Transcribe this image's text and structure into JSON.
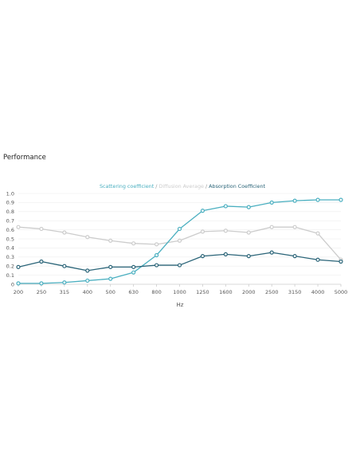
{
  "heading": "Performance",
  "colors": {
    "scattering": "#4aafc0",
    "diffusion": "#cccccc",
    "absorption": "#2a6478",
    "separator": "#999999",
    "grid": "#eeeeee",
    "axis": "#cccccc"
  },
  "chart_data": {
    "type": "line",
    "title": "",
    "legend": {
      "position": "top-center",
      "separator": " / "
    },
    "xlabel": "Hz",
    "ylabel": "",
    "categories": [
      "200",
      "250",
      "315",
      "400",
      "500",
      "630",
      "800",
      "1000",
      "1250",
      "1600",
      "2000",
      "2500",
      "3150",
      "4000",
      "5000"
    ],
    "ylim": [
      0,
      1.0
    ],
    "yticks": [
      "0",
      "0.1",
      "0.2",
      "0.3",
      "0.4",
      "0.5",
      "0.6",
      "0.7",
      "0.8",
      "0.9",
      "1.0"
    ],
    "grid": true,
    "series": [
      {
        "name": "Scattering coefficient",
        "color_key": "scattering",
        "values": [
          0.01,
          0.01,
          0.02,
          0.04,
          0.06,
          0.13,
          0.32,
          0.61,
          0.81,
          0.86,
          0.85,
          0.9,
          0.92,
          0.93,
          0.93
        ]
      },
      {
        "name": "Diffusion Average",
        "color_key": "diffusion",
        "values": [
          0.63,
          0.61,
          0.57,
          0.52,
          0.48,
          0.45,
          0.44,
          0.48,
          0.58,
          0.59,
          0.57,
          0.63,
          0.63,
          0.56,
          0.27
        ]
      },
      {
        "name": "Absorption Coefficient",
        "color_key": "absorption",
        "values": [
          0.19,
          0.25,
          0.2,
          0.15,
          0.19,
          0.19,
          0.21,
          0.21,
          0.31,
          0.33,
          0.31,
          0.35,
          0.31,
          0.27,
          0.25
        ]
      }
    ]
  }
}
